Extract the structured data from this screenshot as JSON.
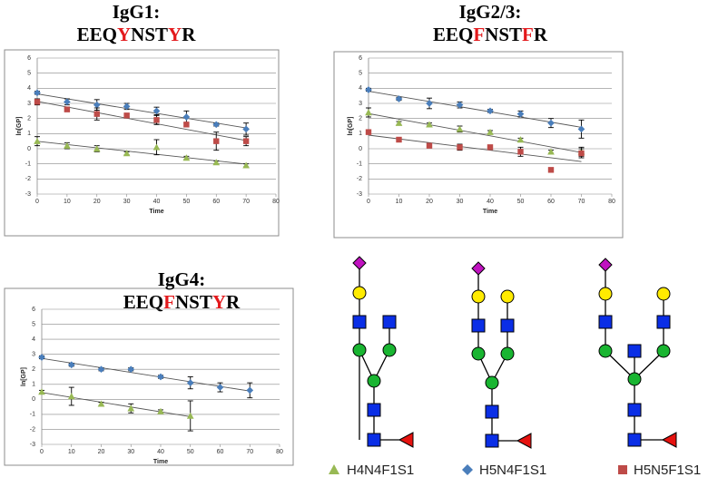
{
  "chart_data": [
    {
      "type": "scatter",
      "title": "IgG1:",
      "sequence": [
        {
          "text": "EEQ",
          "color": "#000000"
        },
        {
          "text": "Y",
          "color": "#e3191c"
        },
        {
          "text": "NST",
          "color": "#000000"
        },
        {
          "text": "Y",
          "color": "#e3191c"
        },
        {
          "text": "R",
          "color": "#000000"
        }
      ],
      "x_label": "Time",
      "y_label": "ln[GP]",
      "x": [
        0,
        10,
        20,
        30,
        40,
        50,
        60,
        70
      ],
      "xlim": [
        0,
        80
      ],
      "xticks": [
        0,
        10,
        20,
        30,
        40,
        50,
        60,
        70,
        80
      ],
      "ylim": [
        -3,
        6
      ],
      "yticks": [
        -3,
        -2,
        -1,
        0,
        1,
        2,
        3,
        4,
        5,
        6
      ],
      "grid": true,
      "trendline": true,
      "series": [
        {
          "marker": "diamond",
          "color": "#4a7ebb",
          "values": [
            3.7,
            3.1,
            2.9,
            2.8,
            2.5,
            2.1,
            1.6,
            1.3
          ],
          "errors": [
            0.1,
            0.2,
            0.35,
            0.2,
            0.25,
            0.4,
            0.1,
            0.4
          ]
        },
        {
          "marker": "square",
          "color": "#be4b48",
          "values": [
            3.1,
            2.6,
            2.3,
            2.2,
            1.9,
            1.6,
            0.5,
            0.5
          ],
          "errors": [
            0.2,
            0.1,
            0.4,
            0.1,
            0.3,
            0.1,
            0.6,
            0.3
          ]
        },
        {
          "marker": "triangle",
          "color": "#98b954",
          "values": [
            0.5,
            0.2,
            0,
            -0.3,
            0.1,
            -0.6,
            -0.9,
            -1.1
          ],
          "errors": [
            0.3,
            0.2,
            0.2,
            0.1,
            0.5,
            0.1,
            0.1,
            0.1
          ]
        }
      ]
    },
    {
      "type": "scatter",
      "title": "IgG2/3:",
      "sequence": [
        {
          "text": "EEQ",
          "color": "#000000"
        },
        {
          "text": "F",
          "color": "#e3191c"
        },
        {
          "text": "NST",
          "color": "#000000"
        },
        {
          "text": "F",
          "color": "#e3191c"
        },
        {
          "text": "R",
          "color": "#000000"
        }
      ],
      "x_label": "Time",
      "y_label": "ln[GP]",
      "x": [
        0,
        10,
        20,
        30,
        40,
        50,
        60,
        70
      ],
      "xlim": [
        0,
        80
      ],
      "xticks": [
        0,
        10,
        20,
        30,
        40,
        50,
        60,
        70,
        80
      ],
      "ylim": [
        -3,
        6
      ],
      "yticks": [
        -3,
        -2,
        -1,
        0,
        1,
        2,
        3,
        4,
        5,
        6
      ],
      "grid": true,
      "trendline": true,
      "series": [
        {
          "marker": "diamond",
          "color": "#4a7ebb",
          "values": [
            3.9,
            3.3,
            3.0,
            2.9,
            2.5,
            2.3,
            1.7,
            1.3
          ],
          "errors": [
            0.1,
            0.1,
            0.35,
            0.2,
            0.1,
            0.2,
            0.3,
            0.6
          ]
        },
        {
          "marker": "triangle",
          "color": "#98b954",
          "values": [
            2.4,
            1.7,
            1.6,
            1.3,
            1.1,
            0.6,
            -0.2,
            -0.2
          ],
          "errors": [
            0.3,
            0.1,
            0.1,
            0.2,
            0.1,
            0.1,
            0.1,
            0.3
          ]
        },
        {
          "marker": "square",
          "color": "#be4b48",
          "values": [
            1.1,
            0.6,
            0.2,
            0.1,
            0.1,
            -0.2,
            -1.4,
            -0.3
          ],
          "errors": [
            0.1,
            0.1,
            0.1,
            0.2,
            0.1,
            0.3,
            0.1,
            0.3
          ]
        }
      ]
    },
    {
      "type": "scatter",
      "title": "IgG4:",
      "sequence": [
        {
          "text": "EEQ",
          "color": "#000000"
        },
        {
          "text": "F",
          "color": "#e3191c"
        },
        {
          "text": "NST",
          "color": "#000000"
        },
        {
          "text": "Y",
          "color": "#e3191c"
        },
        {
          "text": "R",
          "color": "#000000"
        }
      ],
      "x_label": "Time",
      "y_label": "ln[GP]",
      "x": [
        0,
        10,
        20,
        30,
        40,
        50,
        60,
        70
      ],
      "xlim": [
        0,
        80
      ],
      "xticks": [
        0,
        10,
        20,
        30,
        40,
        50,
        60,
        70,
        80
      ],
      "ylim": [
        -3,
        6
      ],
      "yticks": [
        -3,
        -2,
        -1,
        0,
        1,
        2,
        3,
        4,
        5,
        6
      ],
      "grid": true,
      "trendline": true,
      "series": [
        {
          "marker": "diamond",
          "color": "#4a7ebb",
          "values": [
            2.8,
            2.3,
            2.0,
            2.0,
            1.5,
            1.1,
            0.8,
            0.6
          ],
          "errors": [
            0.1,
            0.1,
            0.1,
            0.1,
            0.1,
            0.4,
            0.3,
            0.5
          ]
        },
        {
          "marker": "triangle",
          "color": "#98b954",
          "values": [
            0.5,
            0.2,
            -0.3,
            -0.6,
            -0.8,
            -1.1,
            null,
            null
          ],
          "errors": [
            0.1,
            0.6,
            0.1,
            0.3,
            0.1,
            1.0,
            null,
            null
          ]
        }
      ]
    }
  ],
  "legend": [
    {
      "name": "H4N4F1S1",
      "marker": "triangle",
      "color": "#98b954"
    },
    {
      "name": "H5N4F1S1",
      "marker": "diamond",
      "color": "#4a7ebb"
    },
    {
      "name": "H5N5F1S1",
      "marker": "square",
      "color": "#be4b48"
    }
  ]
}
